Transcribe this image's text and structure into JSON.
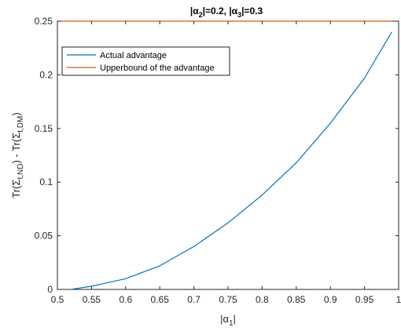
{
  "chart_data": {
    "type": "line",
    "title": "|α₂|=0.2, |α₃|=0.3",
    "title_parts": {
      "p1": "|α",
      "s1": "2",
      "p2": "|=0.2, |α",
      "s2": "3",
      "p3": "|=0.3"
    },
    "xlabel": "|α₁|",
    "xlabel_parts": {
      "pre": "|α",
      "sub": "1",
      "post": "|"
    },
    "ylabel": "Tr(Σt,ND) - Tr(Σt,DM)",
    "ylabel_parts": {
      "p1": "Tr(Σ",
      "s1": "t,ND",
      "p2": ") - Tr(Σ",
      "s2": "t,DM",
      "p3": ")"
    },
    "xlim": [
      0.5,
      1
    ],
    "ylim": [
      0,
      0.25
    ],
    "x_ticks": [
      "0.5",
      "0.55",
      "0.6",
      "0.65",
      "0.7",
      "0.75",
      "0.8",
      "0.85",
      "0.9",
      "0.95",
      "1"
    ],
    "y_ticks": [
      "0",
      "0.05",
      "0.1",
      "0.15",
      "0.2",
      "0.25"
    ],
    "grid": false,
    "legend_position": "top-left",
    "series": [
      {
        "name": "Actual advantage",
        "color": "#0072BD",
        "x": [
          0.52,
          0.55,
          0.6,
          0.65,
          0.7,
          0.75,
          0.8,
          0.85,
          0.9,
          0.95,
          0.99
        ],
        "y": [
          0.0,
          0.003,
          0.01,
          0.022,
          0.04,
          0.062,
          0.088,
          0.118,
          0.155,
          0.197,
          0.24
        ]
      },
      {
        "name": "Upperbound of the advantage",
        "color": "#D95319",
        "x": [
          0.5,
          0.99
        ],
        "y": [
          0.25,
          0.25
        ]
      }
    ]
  }
}
